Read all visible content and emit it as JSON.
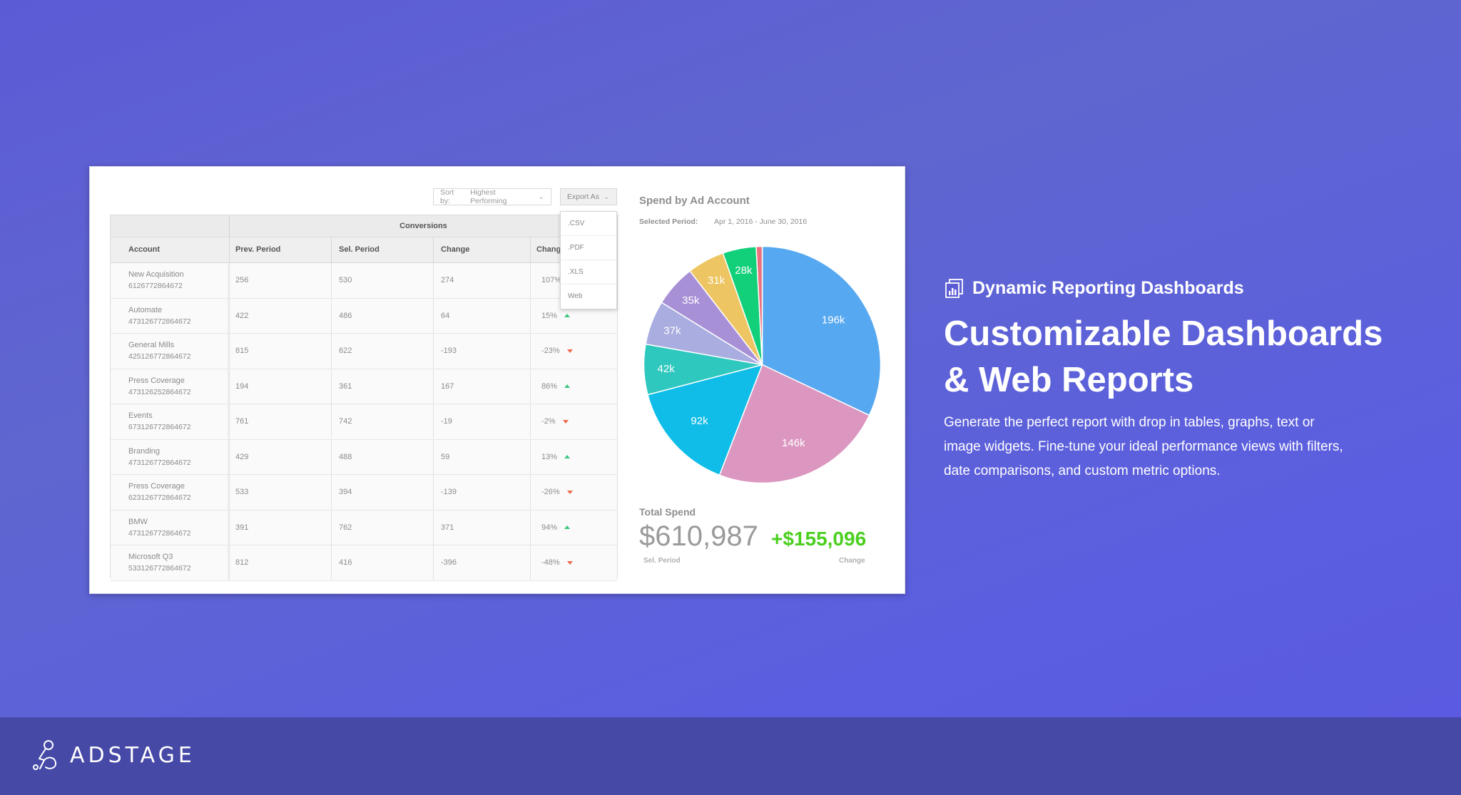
{
  "brand": {
    "name": "ADSTAGE"
  },
  "dashboard": {
    "sort": {
      "label": "Sort by:",
      "value": "Highest Performing"
    },
    "export": {
      "label": "Export As",
      "options": [
        ".CSV",
        ".PDF",
        ".XLS",
        "Web"
      ]
    },
    "table": {
      "group_header": "Conversions",
      "columns": [
        "Account",
        "Prev. Period",
        "Sel. Period",
        "Change",
        "Change %"
      ],
      "rows": [
        {
          "name": "New Acquisition",
          "id": "6126772864672",
          "prev": "256",
          "sel": "530",
          "change": "274",
          "pct": "107%",
          "trend": "up"
        },
        {
          "name": "Automate",
          "id": "473126772864672",
          "prev": "422",
          "sel": "486",
          "change": "64",
          "pct": "15%",
          "trend": "up"
        },
        {
          "name": "General Mills",
          "id": "425126772864672",
          "prev": "815",
          "sel": "622",
          "change": "-193",
          "pct": "-23%",
          "trend": "down"
        },
        {
          "name": "Press Coverage",
          "id": "473126252864672",
          "prev": "194",
          "sel": "361",
          "change": "167",
          "pct": "86%",
          "trend": "up"
        },
        {
          "name": "Events",
          "id": "673126772864672",
          "prev": "761",
          "sel": "742",
          "change": "-19",
          "pct": "-2%",
          "trend": "down"
        },
        {
          "name": "Branding",
          "id": "473126772864672",
          "prev": "429",
          "sel": "488",
          "change": "59",
          "pct": "13%",
          "trend": "up"
        },
        {
          "name": "Press Coverage",
          "id": "623126772864672",
          "prev": "533",
          "sel": "394",
          "change": "-139",
          "pct": "-26%",
          "trend": "down"
        },
        {
          "name": "BMW",
          "id": "473126772864672",
          "prev": "391",
          "sel": "762",
          "change": "371",
          "pct": "94%",
          "trend": "up"
        },
        {
          "name": "Microsoft Q3",
          "id": "533126772864672",
          "prev": "812",
          "sel": "416",
          "change": "-396",
          "pct": "-48%",
          "trend": "down"
        }
      ]
    },
    "chart_title": "Spend by Ad Account",
    "period_label": "Selected Period:",
    "period_value": "Apr 1, 2016 - June 30, 2016",
    "total_spend": {
      "title": "Total Spend",
      "value": "$610,987",
      "value_label": "Sel. Period",
      "change": "+$155,096",
      "change_label": "Change"
    }
  },
  "chart_data": {
    "type": "pie",
    "title": "Spend by Ad Account",
    "slices": [
      {
        "label": "196k",
        "value": 196,
        "color": "#56a8f0"
      },
      {
        "label": "146k",
        "value": 146,
        "color": "#dc97c0"
      },
      {
        "label": "92k",
        "value": 92,
        "color": "#0fbde8"
      },
      {
        "label": "42k",
        "value": 42,
        "color": "#2ec8bf"
      },
      {
        "label": "37k",
        "value": 37,
        "color": "#a9addf"
      },
      {
        "label": "35k",
        "value": 35,
        "color": "#a890d6"
      },
      {
        "label": "31k",
        "value": 31,
        "color": "#edc562"
      },
      {
        "label": "28k",
        "value": 28,
        "color": "#12d07a"
      },
      {
        "label": "",
        "value": 5,
        "color": "#ea6f7c"
      }
    ]
  },
  "promo": {
    "feature_label": "Dynamic Reporting Dashboards",
    "headline_line1": "Customizable Dashboards",
    "headline_line2": "& Web Reports",
    "description": "Generate the perfect report with drop in tables, graphs, text or image widgets. Fine-tune your ideal performance views with filters, date comparisons, and custom metric options."
  },
  "colors": {
    "up": "#3ec77f",
    "down": "#ef6a4a",
    "change_positive": "#4ccf20",
    "background": "#5c5bd6",
    "footer": "#4649a6"
  }
}
